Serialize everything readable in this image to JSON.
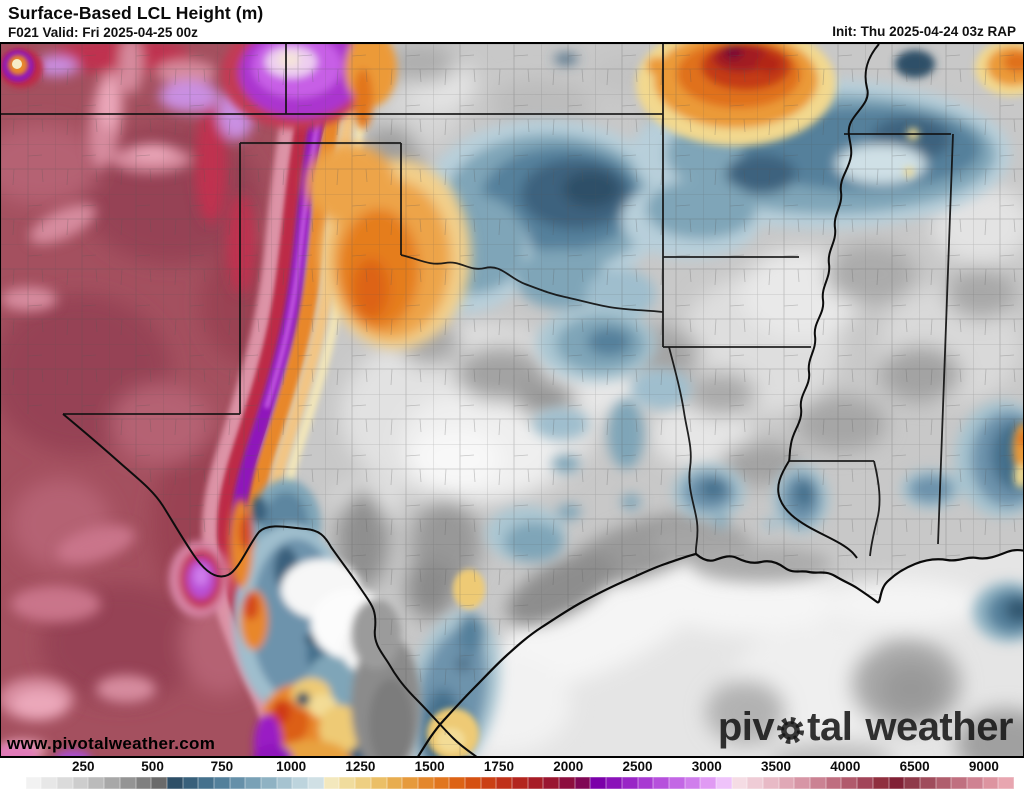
{
  "header": {
    "title": "Surface-Based LCL Height (m)",
    "forecast": "F021 Valid: Fri 2025-04-25 00z",
    "init": "Init: Thu 2025-04-24 03z RAP"
  },
  "map": {
    "watermark": "www.pivotalweather.com",
    "logo": {
      "part1": "piv",
      "part2": "tal",
      "part3": "weather"
    }
  },
  "colorbar": {
    "units": "m",
    "ticks": [
      {
        "label": "250",
        "pct": 7.3
      },
      {
        "label": "500",
        "pct": 14.2
      },
      {
        "label": "750",
        "pct": 21.1
      },
      {
        "label": "1000",
        "pct": 28.0
      },
      {
        "label": "1250",
        "pct": 34.9
      },
      {
        "label": "1500",
        "pct": 41.8
      },
      {
        "label": "1750",
        "pct": 48.7
      },
      {
        "label": "2000",
        "pct": 55.6
      },
      {
        "label": "2500",
        "pct": 62.5
      },
      {
        "label": "3000",
        "pct": 69.4
      },
      {
        "label": "3500",
        "pct": 76.3
      },
      {
        "label": "4000",
        "pct": 83.2
      },
      {
        "label": "6500",
        "pct": 90.1
      },
      {
        "label": "9000",
        "pct": 97.0
      }
    ],
    "cells": [
      "#ffffff",
      "#f2f2f2",
      "#e7e7e7",
      "#dbdbdb",
      "#cdcdcd",
      "#bbbbbb",
      "#a8a8a8",
      "#949494",
      "#808080",
      "#6a6a6a",
      "#2e4f67",
      "#38607b",
      "#45718d",
      "#53809b",
      "#6590a9",
      "#79a1b6",
      "#8fb2c3",
      "#a6c3d0",
      "#bdd4dd",
      "#d0e0e5",
      "#f3e8bd",
      "#f0dc9d",
      "#eecf82",
      "#ebbf67",
      "#e8ad50",
      "#e69a3c",
      "#e4872c",
      "#e1761f",
      "#dd6315",
      "#d55112",
      "#cb4015",
      "#c03119",
      "#b3251e",
      "#a71c26",
      "#9a1530",
      "#8d0e3e",
      "#800755",
      "#7b00a9",
      "#8a12b9",
      "#9926c6",
      "#a83ad2",
      "#b650dc",
      "#c367e5",
      "#d07eec",
      "#e09af3",
      "#efc3fa",
      "#f5dce4",
      "#efccd6",
      "#e8bac6",
      "#e0a8b6",
      "#d796a6",
      "#cb8293",
      "#bf6e80",
      "#b15a6c",
      "#a24559",
      "#90303f",
      "#812136",
      "#8f3a4a",
      "#a04c5c",
      "#b05e6d",
      "#c07080",
      "#cf8292",
      "#dd94a0",
      "#e8a6b0"
    ]
  }
}
